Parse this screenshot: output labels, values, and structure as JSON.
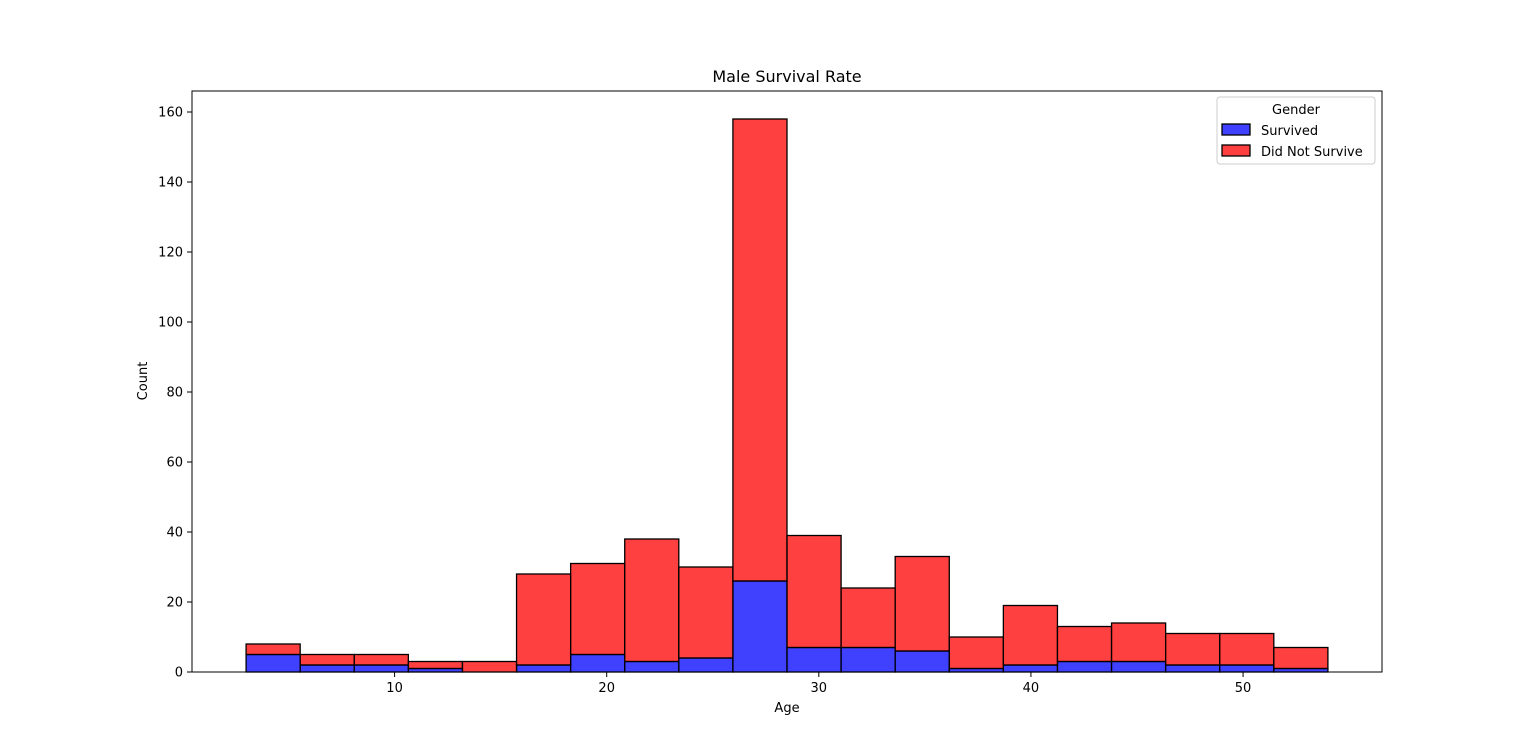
{
  "chart_data": {
    "type": "bar",
    "title": "Male Survival Rate",
    "xlabel": "Age",
    "ylabel": "Count",
    "xlim": [
      0.45,
      56.55
    ],
    "ylim": [
      0,
      166
    ],
    "xticks": [
      10,
      20,
      30,
      40,
      50
    ],
    "yticks": [
      0,
      20,
      40,
      60,
      80,
      100,
      120,
      140,
      160
    ],
    "bin_edges": [
      3,
      5.55,
      8.1,
      10.65,
      13.2,
      15.75,
      18.3,
      20.85,
      23.4,
      25.95,
      28.5,
      31.05,
      33.6,
      36.15,
      38.7,
      41.25,
      43.8,
      46.35,
      48.9,
      51.45,
      54
    ],
    "stacked": true,
    "legend": {
      "title": "Gender",
      "position": "top-right"
    },
    "series": [
      {
        "name": "Survived",
        "color": "#0000ff",
        "values": [
          5,
          2,
          2,
          1,
          0,
          2,
          5,
          3,
          4,
          26,
          7,
          7,
          6,
          1,
          2,
          3,
          3,
          2,
          2,
          1
        ]
      },
      {
        "name": "Did Not Survive",
        "color": "#ff0000",
        "values": [
          3,
          3,
          3,
          2,
          3,
          26,
          26,
          35,
          26,
          132,
          32,
          17,
          27,
          9,
          17,
          10,
          11,
          9,
          9,
          6
        ]
      }
    ],
    "grid": false
  }
}
